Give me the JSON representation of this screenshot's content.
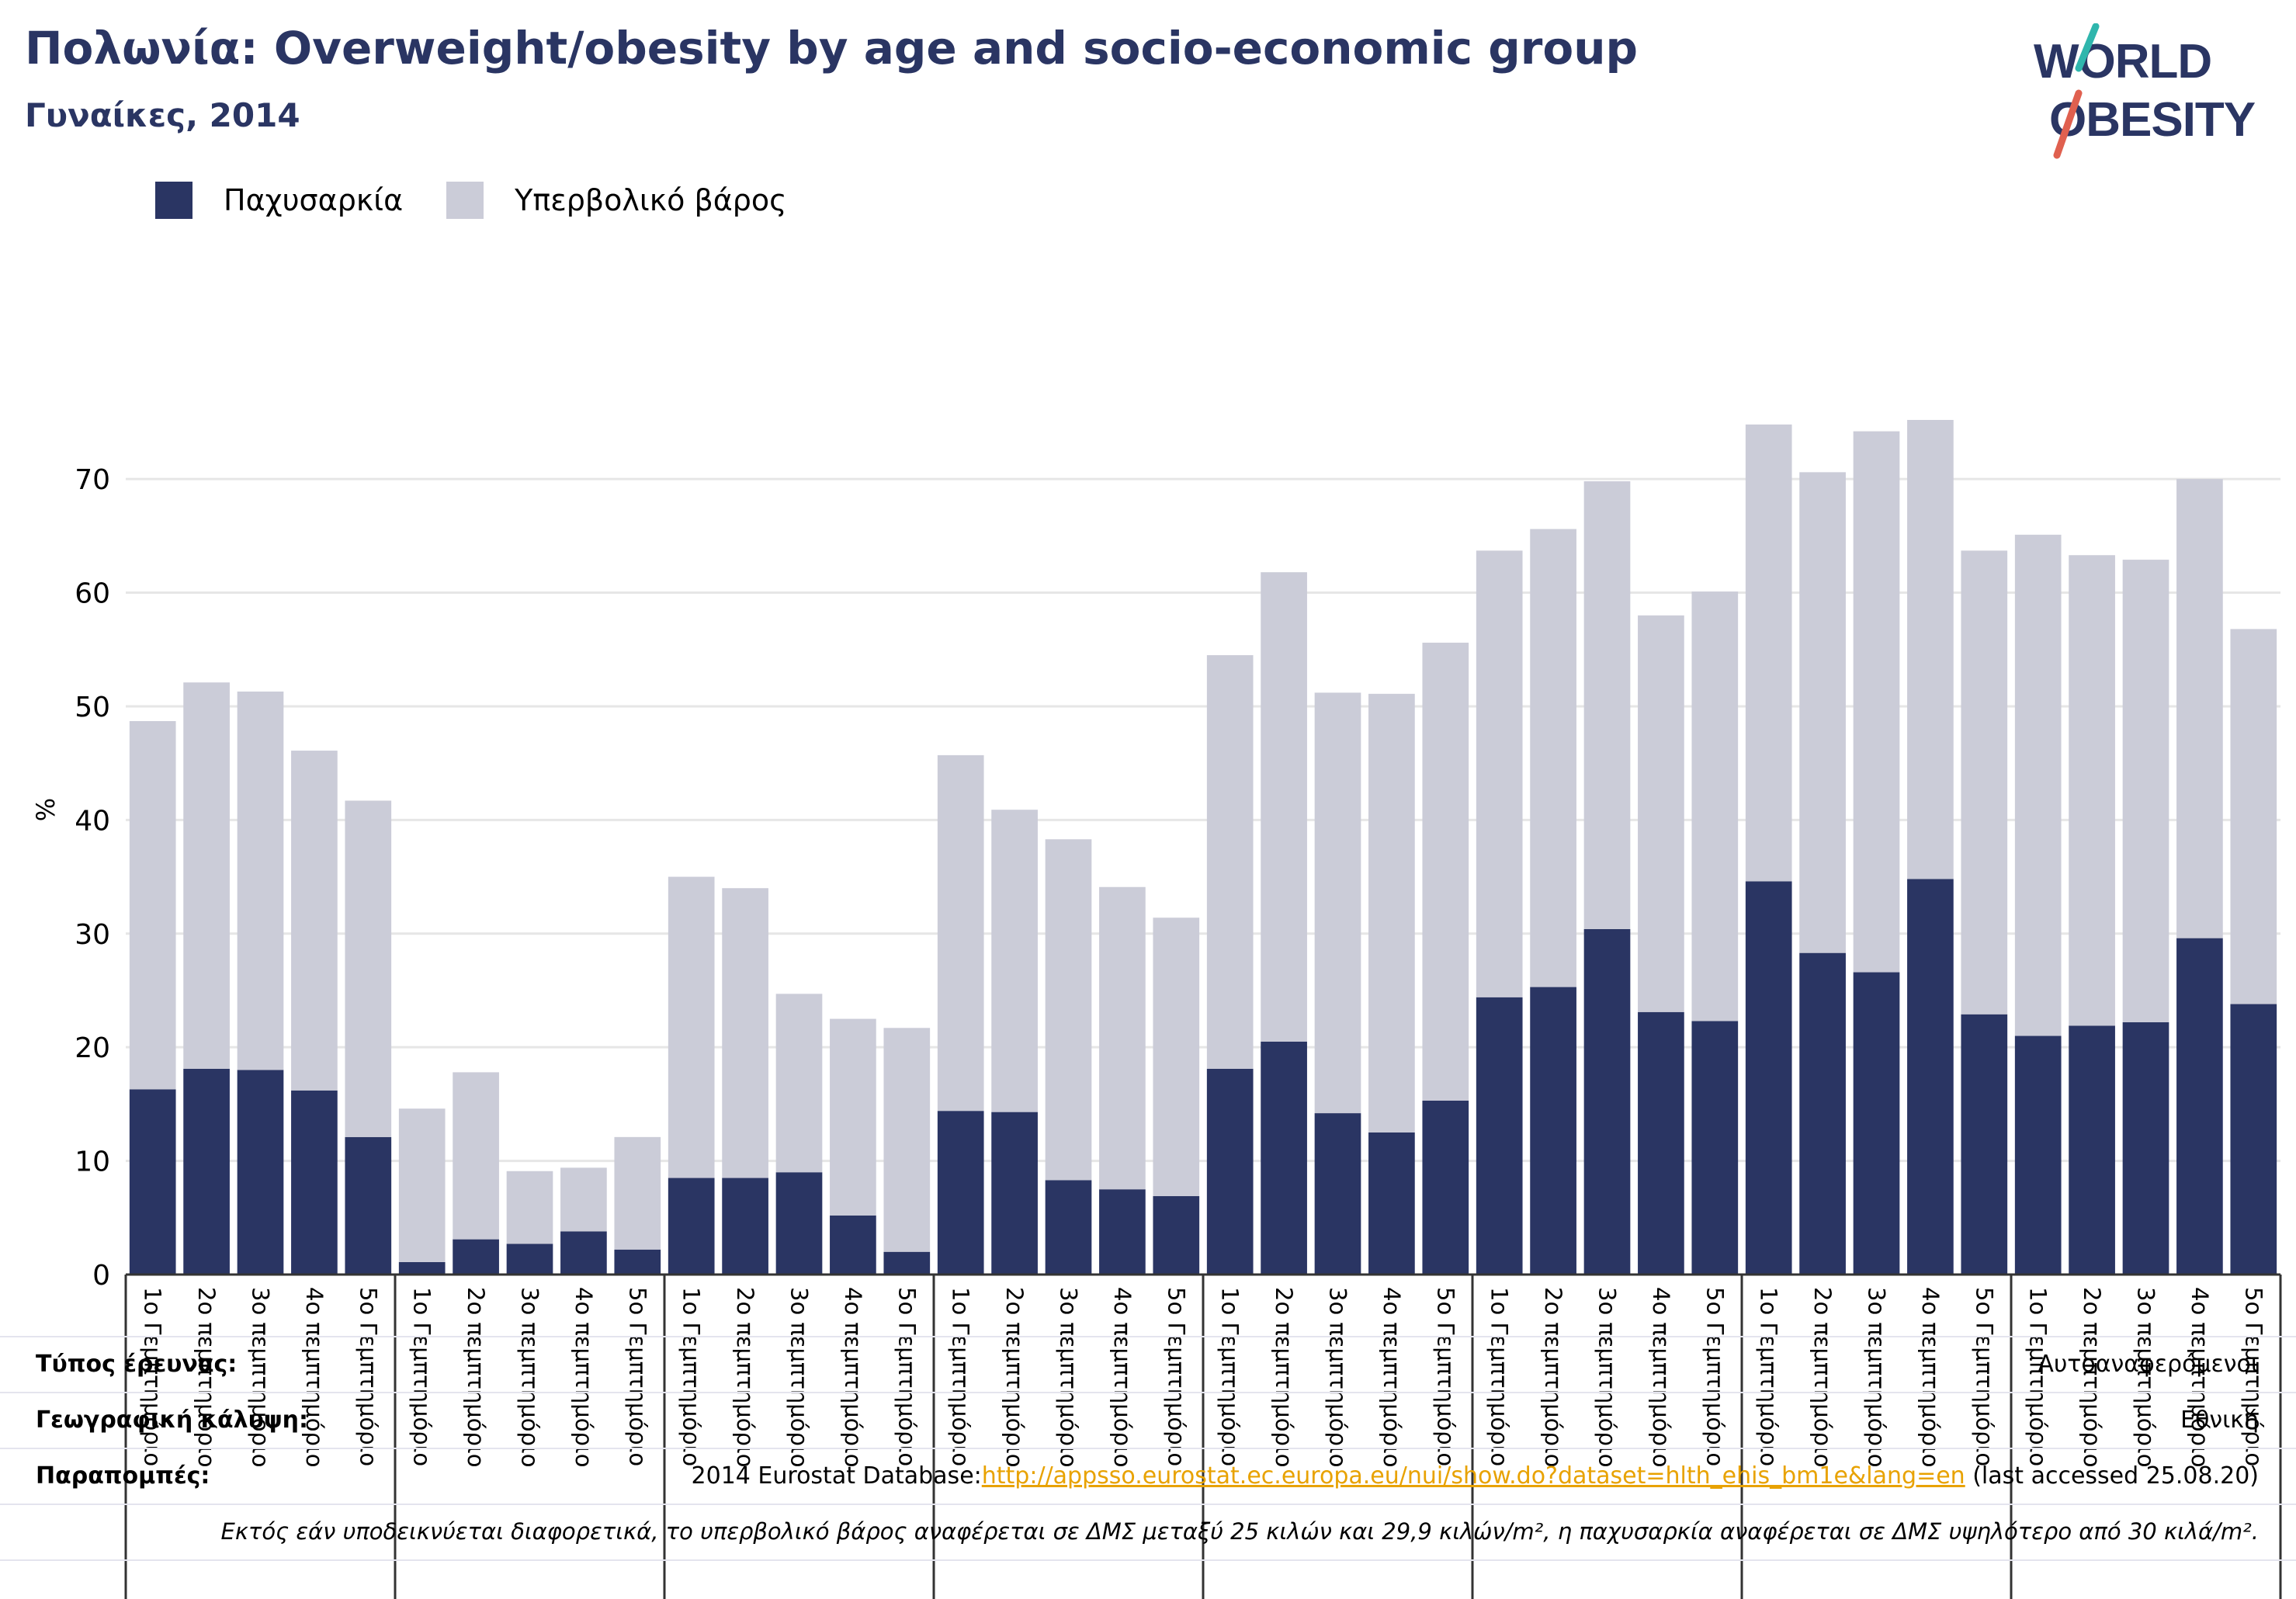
{
  "header": {
    "title": "Πολωνία: Overweight/obesity by age and socio-economic group",
    "subtitle": "Γυναίκες, 2014"
  },
  "logo": {
    "line1": "WORLD",
    "line2": "OBESITY"
  },
  "legend": [
    {
      "label": "Παχυσαρκία",
      "color": "#2a3563"
    },
    {
      "label": "Υπερβολικό βάρος",
      "color": "#cbccd8"
    }
  ],
  "footer": {
    "survey_label": "Τύπος έρευνας:",
    "survey_value": "Αυτοαναφερόμενοι",
    "coverage_label": "Γεωγραφική κάλυψη:",
    "coverage_value": "Εθνική",
    "refs_label": "Παραπομπές:",
    "refs_prefix": "2014 Eurostat Database:",
    "refs_link": "http://appsso.eurostat.ec.europa.eu/nui/show.do?dataset=hlth_ehis_bm1e&lang=en",
    "refs_suffix": " (last accessed 25.08.20)",
    "note": "Εκτός εάν υποδεικνύεται διαφορετικά, το υπερβολικό βάρος αναφέρεται σε ΔΜΣ μεταξύ 25 κιλών και 29,9 κιλών/m², η παχυσαρκία αναφέρεται σε ΔΜΣ υψηλότερο από 30 κιλά/m²."
  },
  "chart_data": {
    "type": "bar",
    "stacked": true,
    "title": "Πολωνία: Overweight/obesity by age and socio-economic group",
    "subtitle": "Γυναίκες, 2014",
    "ylabel": "%",
    "ylim": [
      0,
      78
    ],
    "yticks": [
      0,
      10,
      20,
      30,
      40,
      50,
      60,
      70
    ],
    "grid": true,
    "legend_position": "top-left",
    "colors": {
      "obesity": "#2a3563",
      "overweight": "#cbccd8"
    },
    "categories": [
      "1ο Γεμπτημόριο",
      "2ο πεμπτημόριο",
      "3ο πεμπτημόριο",
      "4ο πεμπτημόριο",
      "5ο Γεμπτημόριο",
      "1ο Γεμπτημόριο",
      "2ο πεμπτημόριο",
      "3ο πεμπτημόριο",
      "4ο πεμπτημόριο",
      "5ο Γεμπτημόριο",
      "1ο Γεμπτημόριο",
      "2ο πεμπτημόριο",
      "3ο πεμπτημόριο",
      "4ο πεμπτημόριο",
      "5ο Γεμπτημόριο",
      "1ο Γεμπτημόριο",
      "2ο πεμπτημόριο",
      "3ο πεμπτημόριο",
      "4ο πεμπτημόριο",
      "5ο Γεμπτημόριο",
      "1ο Γεμπτημόριο",
      "2ο πεμπτημόριο",
      "3ο πεμπτημόριο",
      "4ο πεμπτημόριο",
      "5ο Γεμπτημόριο",
      "1ο Γεμπτημόριο",
      "2ο πεμπτημόριο",
      "3ο πεμπτημόριο",
      "4ο πεμπτημόριο",
      "5ο Γεμπτημόριο",
      "1ο Γεμπτημόριο",
      "2ο πεμπτημόριο",
      "3ο πεμπτημόριο",
      "4ο πεμπτημόριο",
      "5ο Γεμπτημόριο",
      "1ο Γεμπτημόριο",
      "2ο πεμπτημόριο",
      "3ο πεμπτημόριο",
      "4ο πεμπτημόριο",
      "5ο Γεμπτημόριο"
    ],
    "group_size": 5,
    "series": [
      {
        "name": "Παχυσαρκία",
        "values": [
          16.3,
          18.1,
          18.0,
          16.2,
          12.1,
          1.1,
          3.1,
          2.7,
          3.8,
          2.2,
          8.5,
          8.5,
          9.0,
          5.2,
          2.0,
          14.4,
          14.3,
          8.3,
          7.5,
          6.9,
          18.1,
          20.5,
          14.2,
          12.5,
          15.3,
          24.4,
          25.3,
          30.4,
          23.1,
          22.3,
          34.6,
          28.3,
          26.6,
          34.8,
          22.9,
          21.0,
          21.9,
          22.2,
          29.6,
          23.8
        ]
      },
      {
        "name": "Υπερβολικό βάρος",
        "values": [
          32.4,
          34.0,
          33.3,
          29.9,
          29.6,
          13.5,
          14.7,
          6.4,
          5.6,
          9.9,
          26.5,
          25.5,
          15.7,
          17.3,
          19.7,
          31.3,
          26.6,
          30.0,
          26.6,
          24.5,
          36.4,
          41.3,
          37.0,
          38.6,
          40.3,
          39.3,
          40.3,
          39.4,
          34.9,
          37.8,
          40.2,
          42.3,
          47.6,
          40.4,
          40.8,
          44.1,
          41.4,
          40.7,
          40.4,
          33.0
        ]
      }
    ]
  }
}
